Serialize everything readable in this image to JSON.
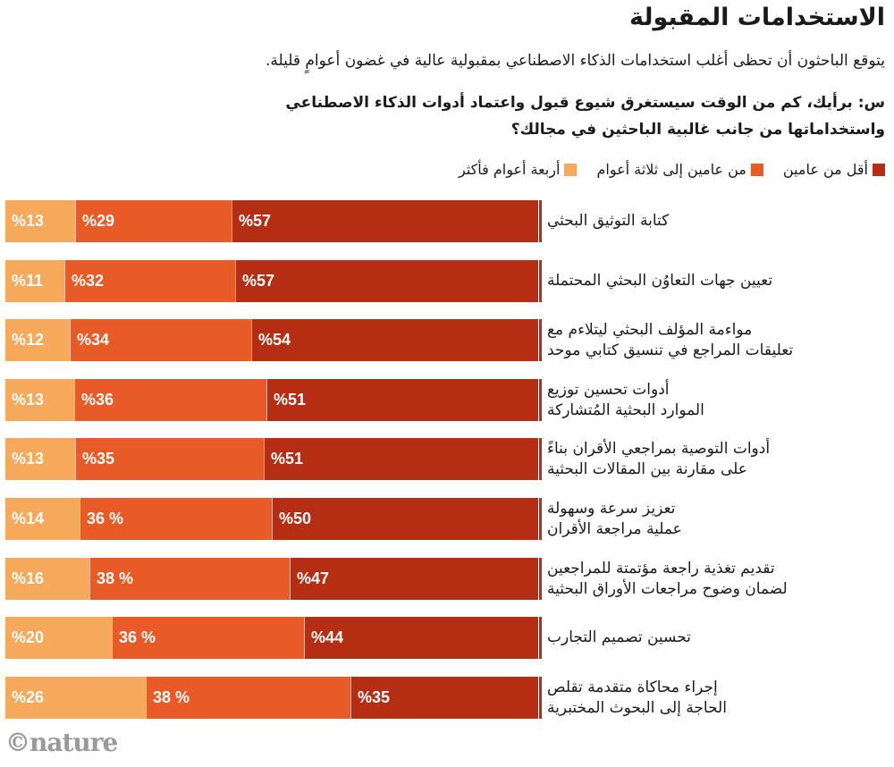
{
  "header": {
    "title": "الاستخدامات المقبولة",
    "subtitle": "يتوقع الباحثون أن تحظى أغلب استخدامات الذكاء الاصطناعي بمقبولية عالية في غضون أعوامٍ قليلة.",
    "question_line1": "س: برأيك، كم من الوقت سيستغرق شيوع قبول واعتماد أدوات الذكاء الاصطناعي",
    "question_line2": "واستخداماتها من جانب غالبية الباحثين في مجالك؟"
  },
  "colors": {
    "less_than_two": "#B52D12",
    "two_to_three": "#E95B26",
    "four_plus": "#F6A95A"
  },
  "logo": "©nature",
  "chart_data": {
    "type": "bar",
    "stacked": true,
    "orientation": "horizontal",
    "title": "الاستخدامات المقبولة",
    "legend": [
      "أقل من عامين",
      "من عامين إلى ثلاثة أعوام",
      "أربعة أعوام فأكثر"
    ],
    "legend_position": "top-right",
    "categories": [
      "كتابة التوثيق البحثي",
      "تعيين جهات التعاوُن البحثي المحتملة",
      "مواءمة المؤلف البحثي ليتلاءم مع تعليقات المراجع في تنسيق كتابي موحد",
      "أدوات تحسين توزيع الموارد البحثية المُتشاركة",
      "أدوات التوصية بمراجعي الأقران بناءً على مقارنة بين المقالات البحثية",
      "تعزيز سرعة وسهولة عملية مراجعة الأقران",
      "تقديم تغذية راجعة مؤتمتة للمراجعين لضمان وضوح مراجعات الأوراق البحثية",
      "تحسين تصميم التجارب",
      "إجراء محاكاة متقدمة تقلص الحاجة إلى البحوث المختبرية"
    ],
    "category_lines": [
      [
        "كتابة التوثيق البحثي"
      ],
      [
        "تعيين جهات التعاوُن البحثي المحتملة"
      ],
      [
        "مواءمة المؤلف البحثي ليتلاءم مع",
        "تعليقات المراجع في تنسيق كتابي موحد"
      ],
      [
        "أدوات تحسين توزيع",
        "الموارد البحثية المُتشاركة"
      ],
      [
        "أدوات التوصية بمراجعي الأقران بناءً",
        "على مقارنة بين المقالات البحثية"
      ],
      [
        "تعزيز سرعة وسهولة",
        "عملية مراجعة الأقران"
      ],
      [
        "تقديم تغذية راجعة مؤتمتة للمراجعين",
        "لضمان وضوح مراجعات الأوراق البحثية"
      ],
      [
        "تحسين تصميم التجارب"
      ],
      [
        "إجراء محاكاة متقدمة تقلص",
        "الحاجة إلى البحوث المختبرية"
      ]
    ],
    "series": [
      {
        "name": "أربعة أعوام فأكثر",
        "color": "#F6A95A",
        "values": [
          13,
          11,
          12,
          13,
          13,
          14,
          16,
          20,
          26
        ],
        "labels": [
          "%13",
          "%11",
          "%12",
          "%13",
          "%13",
          "%14",
          "%16",
          "%20",
          "%26"
        ]
      },
      {
        "name": "من عامين إلى ثلاثة أعوام",
        "color": "#E95B26",
        "values": [
          29,
          32,
          34,
          36,
          35,
          36,
          38,
          36,
          38
        ],
        "labels": [
          "%29",
          "%32",
          "%34",
          "%36",
          "%35",
          "36 %",
          "38 %",
          "36 %",
          "38 %"
        ]
      },
      {
        "name": "أقل من عامين",
        "color": "#B52D12",
        "values": [
          57,
          57,
          54,
          51,
          51,
          50,
          47,
          44,
          35
        ],
        "labels": [
          "%57",
          "%57",
          "%54",
          "%51",
          "%51",
          "%50",
          "%47",
          "%44",
          "%35"
        ]
      }
    ],
    "unit": "%",
    "xlim": [
      0,
      100
    ],
    "grid": false
  }
}
